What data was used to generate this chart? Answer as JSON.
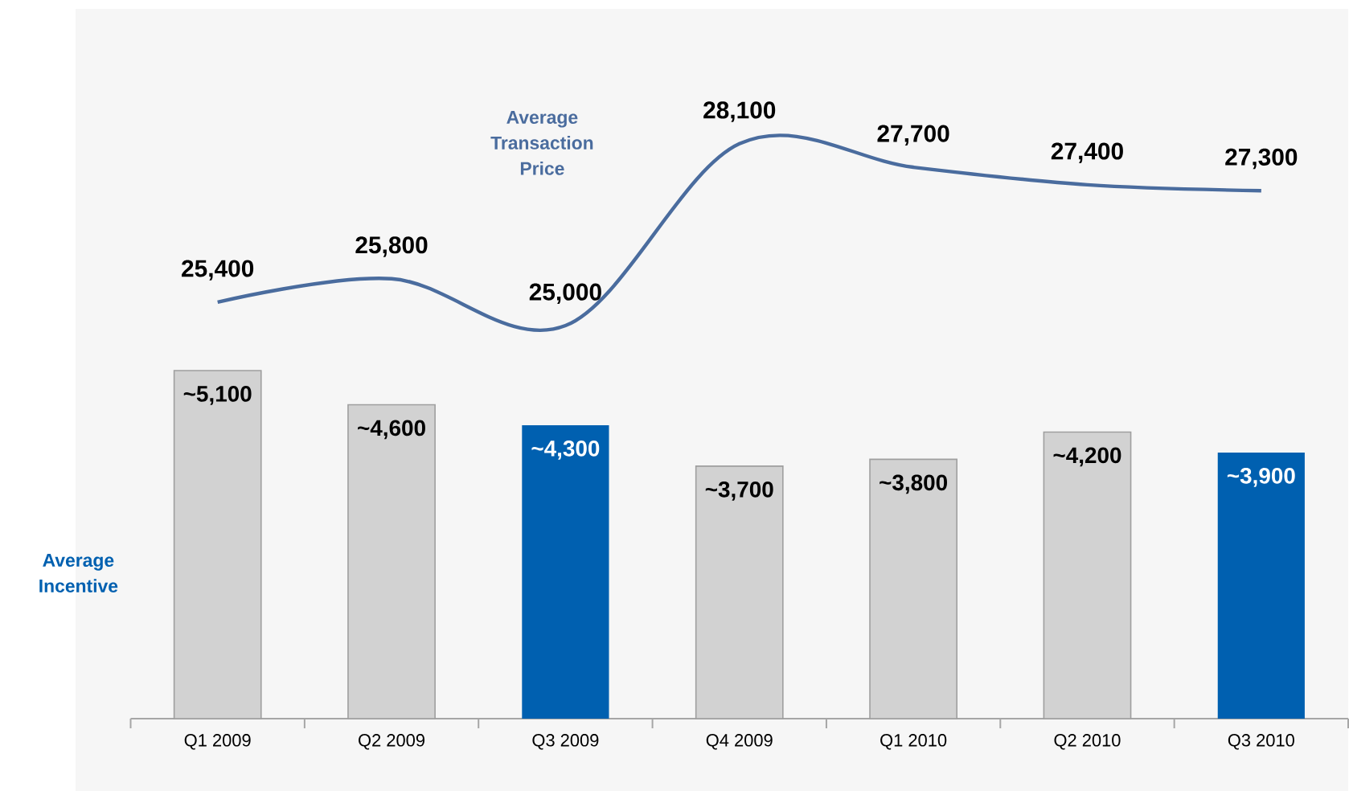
{
  "chart_data": {
    "type": "bar",
    "categories": [
      "Q1 2009",
      "Q2 2009",
      "Q3 2009",
      "Q4 2009",
      "Q1 2010",
      "Q2 2010",
      "Q3 2010"
    ],
    "series": [
      {
        "name": "Average Incentive",
        "colors": [
          "#d2d2d2",
          "#d2d2d2",
          "#0060b0",
          "#d2d2d2",
          "#d2d2d2",
          "#d2d2d2",
          "#0060b0"
        ],
        "values": [
          5100,
          4600,
          4300,
          3700,
          3800,
          4200,
          3900
        ],
        "value_labels": [
          "~5,100",
          "~4,600",
          "~4,300",
          "~3,700",
          "~3,800",
          "~4,200",
          "~3,900"
        ]
      },
      {
        "name": "Average Transaction Price",
        "type": "line",
        "axis": "y2",
        "color": "#4a6c9e",
        "values": [
          25400,
          25800,
          25000,
          28100,
          27700,
          27400,
          27300
        ],
        "value_labels": [
          "25,400",
          "25,800",
          "25,000",
          "28,100",
          "27,700",
          "27,400",
          "27,300"
        ]
      }
    ],
    "ylim": [
      0,
      10400
    ],
    "y2lim": [
      18300,
      30400
    ]
  }
}
